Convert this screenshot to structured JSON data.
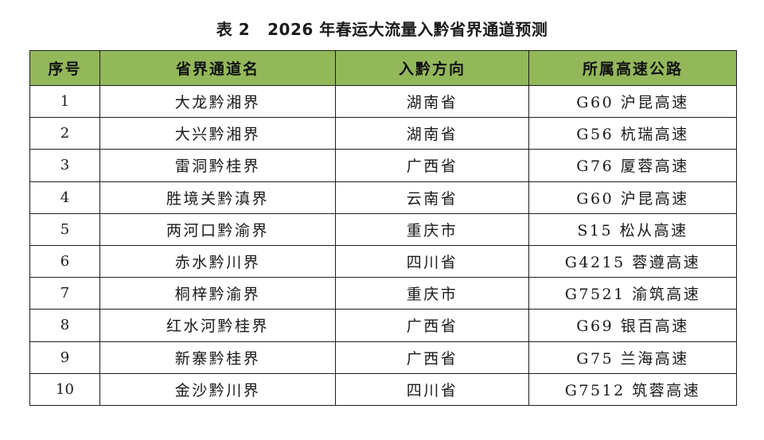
{
  "caption": {
    "label": "表 2",
    "title": "2026 年春运大流量入黔省界通道预测"
  },
  "table": {
    "headers": [
      "序号",
      "省界通道名",
      "入黔方向",
      "所属高速公路"
    ],
    "rows": [
      [
        "1",
        "大龙黔湘界",
        "湖南省",
        "G60 沪昆高速"
      ],
      [
        "2",
        "大兴黔湘界",
        "湖南省",
        "G56 杭瑞高速"
      ],
      [
        "3",
        "雷洞黔桂界",
        "广西省",
        "G76 厦蓉高速"
      ],
      [
        "4",
        "胜境关黔滇界",
        "云南省",
        "G60 沪昆高速"
      ],
      [
        "5",
        "两河口黔渝界",
        "重庆市",
        "S15 松从高速"
      ],
      [
        "6",
        "赤水黔川界",
        "四川省",
        "G4215 蓉遵高速"
      ],
      [
        "7",
        "桐梓黔渝界",
        "重庆市",
        "G7521 渝筑高速"
      ],
      [
        "8",
        "红水河黔桂界",
        "广西省",
        "G69 银百高速"
      ],
      [
        "9",
        "新寨黔桂界",
        "广西省",
        "G75 兰海高速"
      ],
      [
        "10",
        "金沙黔川界",
        "四川省",
        "G7512 筑蓉高速"
      ]
    ]
  },
  "colors": {
    "header_background": "#93b85a",
    "border": "#1e1e1e"
  }
}
